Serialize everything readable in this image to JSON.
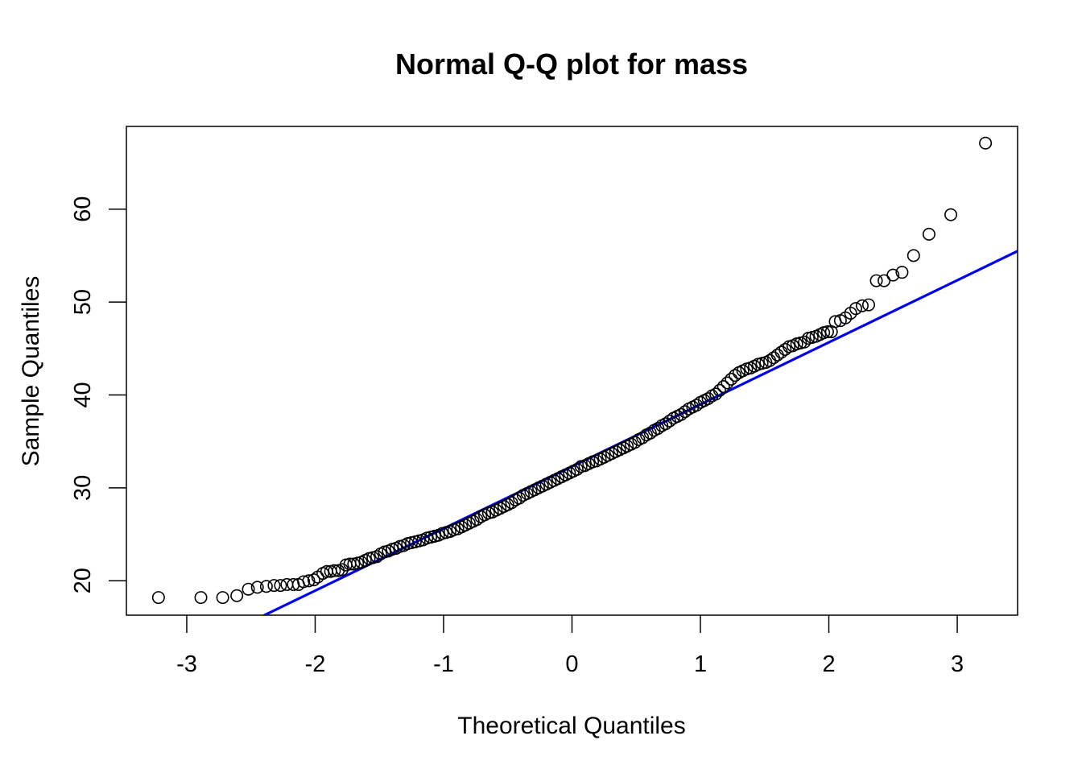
{
  "chart_data": {
    "type": "scatter",
    "title": "Normal Q-Q plot for mass",
    "xlabel": "Theoretical Quantiles",
    "ylabel": "Sample Quantiles",
    "xlim": [
      -3.47,
      3.47
    ],
    "ylim": [
      16.3,
      68.9
    ],
    "xticks": [
      -3,
      -2,
      -1,
      0,
      1,
      2,
      3
    ],
    "yticks": [
      20,
      30,
      40,
      50,
      60
    ],
    "grid": false,
    "series": [
      {
        "kind": "points",
        "marker": "open-circle",
        "color": "#000000",
        "points": [
          [
            -3.22,
            18.2
          ],
          [
            -2.89,
            18.2
          ],
          [
            -2.72,
            18.2
          ],
          [
            -2.61,
            18.4
          ],
          [
            -2.52,
            19.1
          ],
          [
            -2.45,
            19.3
          ],
          [
            -2.38,
            19.4
          ],
          [
            -2.32,
            19.5
          ],
          [
            -2.27,
            19.5
          ],
          [
            -2.22,
            19.6
          ],
          [
            -2.17,
            19.6
          ],
          [
            -2.13,
            19.6
          ],
          [
            -2.09,
            19.9
          ],
          [
            -2.05,
            20.0
          ],
          [
            -2.01,
            20.1
          ],
          [
            -1.98,
            20.4
          ],
          [
            -1.94,
            20.8
          ],
          [
            -1.91,
            21.0
          ],
          [
            -1.88,
            21.0
          ],
          [
            -1.85,
            21.1
          ],
          [
            -1.82,
            21.1
          ],
          [
            -1.79,
            21.2
          ],
          [
            -1.76,
            21.7
          ],
          [
            -1.73,
            21.8
          ],
          [
            -1.7,
            21.8
          ],
          [
            -1.67,
            21.9
          ],
          [
            -1.64,
            22.0
          ],
          [
            -1.61,
            22.2
          ],
          [
            -1.58,
            22.4
          ],
          [
            -1.55,
            22.5
          ],
          [
            -1.52,
            22.6
          ],
          [
            -1.49,
            22.9
          ],
          [
            -1.46,
            23.1
          ],
          [
            -1.43,
            23.2
          ],
          [
            -1.4,
            23.4
          ],
          [
            -1.37,
            23.5
          ],
          [
            -1.34,
            23.7
          ],
          [
            -1.31,
            23.8
          ],
          [
            -1.28,
            24.0
          ],
          [
            -1.25,
            24.1
          ],
          [
            -1.22,
            24.2
          ],
          [
            -1.19,
            24.3
          ],
          [
            -1.16,
            24.4
          ],
          [
            -1.13,
            24.6
          ],
          [
            -1.1,
            24.7
          ],
          [
            -1.07,
            24.8
          ],
          [
            -1.04,
            24.9
          ],
          [
            -1.01,
            25.1
          ],
          [
            -0.98,
            25.2
          ],
          [
            -0.95,
            25.3
          ],
          [
            -0.92,
            25.5
          ],
          [
            -0.89,
            25.6
          ],
          [
            -0.86,
            25.8
          ],
          [
            -0.83,
            26.0
          ],
          [
            -0.8,
            26.2
          ],
          [
            -0.77,
            26.4
          ],
          [
            -0.74,
            26.6
          ],
          [
            -0.71,
            26.9
          ],
          [
            -0.68,
            27.1
          ],
          [
            -0.65,
            27.3
          ],
          [
            -0.62,
            27.4
          ],
          [
            -0.59,
            27.6
          ],
          [
            -0.56,
            27.8
          ],
          [
            -0.53,
            28.0
          ],
          [
            -0.5,
            28.2
          ],
          [
            -0.47,
            28.4
          ],
          [
            -0.44,
            28.7
          ],
          [
            -0.41,
            28.9
          ],
          [
            -0.38,
            29.2
          ],
          [
            -0.35,
            29.4
          ],
          [
            -0.32,
            29.6
          ],
          [
            -0.29,
            29.8
          ],
          [
            -0.26,
            30.0
          ],
          [
            -0.23,
            30.2
          ],
          [
            -0.2,
            30.4
          ],
          [
            -0.17,
            30.6
          ],
          [
            -0.14,
            30.8
          ],
          [
            -0.11,
            31.0
          ],
          [
            -0.08,
            31.2
          ],
          [
            -0.05,
            31.4
          ],
          [
            -0.02,
            31.6
          ],
          [
            0.01,
            31.8
          ],
          [
            0.04,
            32.0
          ],
          [
            0.07,
            32.3
          ],
          [
            0.1,
            32.4
          ],
          [
            0.13,
            32.6
          ],
          [
            0.16,
            32.8
          ],
          [
            0.19,
            32.9
          ],
          [
            0.22,
            33.1
          ],
          [
            0.25,
            33.3
          ],
          [
            0.28,
            33.5
          ],
          [
            0.31,
            33.7
          ],
          [
            0.34,
            33.9
          ],
          [
            0.37,
            34.1
          ],
          [
            0.4,
            34.3
          ],
          [
            0.43,
            34.5
          ],
          [
            0.46,
            34.7
          ],
          [
            0.49,
            34.9
          ],
          [
            0.52,
            35.2
          ],
          [
            0.55,
            35.4
          ],
          [
            0.58,
            35.7
          ],
          [
            0.61,
            35.9
          ],
          [
            0.64,
            36.2
          ],
          [
            0.67,
            36.4
          ],
          [
            0.7,
            36.7
          ],
          [
            0.73,
            36.9
          ],
          [
            0.76,
            37.2
          ],
          [
            0.79,
            37.5
          ],
          [
            0.82,
            37.7
          ],
          [
            0.85,
            37.9
          ],
          [
            0.88,
            38.2
          ],
          [
            0.91,
            38.5
          ],
          [
            0.94,
            38.7
          ],
          [
            0.97,
            38.9
          ],
          [
            1.0,
            39.2
          ],
          [
            1.03,
            39.4
          ],
          [
            1.06,
            39.6
          ],
          [
            1.09,
            39.9
          ],
          [
            1.12,
            40.1
          ],
          [
            1.15,
            40.5
          ],
          [
            1.18,
            40.9
          ],
          [
            1.21,
            41.3
          ],
          [
            1.24,
            41.7
          ],
          [
            1.27,
            42.1
          ],
          [
            1.3,
            42.4
          ],
          [
            1.33,
            42.6
          ],
          [
            1.36,
            42.8
          ],
          [
            1.39,
            42.9
          ],
          [
            1.42,
            43.1
          ],
          [
            1.45,
            43.3
          ],
          [
            1.48,
            43.4
          ],
          [
            1.51,
            43.5
          ],
          [
            1.54,
            43.7
          ],
          [
            1.57,
            44.0
          ],
          [
            1.6,
            44.3
          ],
          [
            1.63,
            44.6
          ],
          [
            1.66,
            44.9
          ],
          [
            1.69,
            45.2
          ],
          [
            1.72,
            45.3
          ],
          [
            1.75,
            45.5
          ],
          [
            1.78,
            45.6
          ],
          [
            1.81,
            45.7
          ],
          [
            1.84,
            46.1
          ],
          [
            1.87,
            46.2
          ],
          [
            1.9,
            46.3
          ],
          [
            1.93,
            46.5
          ],
          [
            1.96,
            46.7
          ],
          [
            1.99,
            46.8
          ],
          [
            2.02,
            46.8
          ],
          [
            2.05,
            47.9
          ],
          [
            2.09,
            48.0
          ],
          [
            2.13,
            48.3
          ],
          [
            2.17,
            48.8
          ],
          [
            2.21,
            49.3
          ],
          [
            2.26,
            49.6
          ],
          [
            2.31,
            49.7
          ],
          [
            2.37,
            52.3
          ],
          [
            2.43,
            52.3
          ],
          [
            2.5,
            52.9
          ],
          [
            2.57,
            53.2
          ],
          [
            2.66,
            55.0
          ],
          [
            2.78,
            57.3
          ],
          [
            2.95,
            59.4
          ],
          [
            3.22,
            67.1
          ]
        ]
      },
      {
        "kind": "reference-line",
        "color": "#0000ee",
        "intercept": 32.3,
        "slope": 6.68
      }
    ]
  }
}
